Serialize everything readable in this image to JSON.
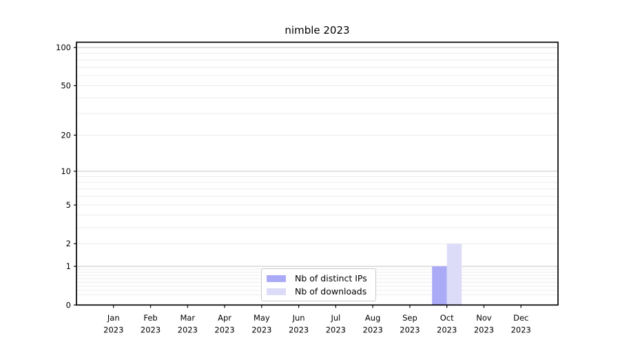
{
  "chart_data": {
    "type": "bar",
    "title": "nimble 2023",
    "categories": [
      "Jan 2023",
      "Feb 2023",
      "Mar 2023",
      "Apr 2023",
      "May 2023",
      "Jun 2023",
      "Jul 2023",
      "Aug 2023",
      "Sep 2023",
      "Oct 2023",
      "Nov 2023",
      "Dec 2023"
    ],
    "series": [
      {
        "name": "Nb of distinct IPs",
        "color": "#aaaaf7",
        "values": [
          0,
          0,
          0,
          0,
          0,
          0,
          0,
          0,
          0,
          1,
          0,
          0
        ]
      },
      {
        "name": "Nb of downloads",
        "color": "#dcdcf9",
        "values": [
          0,
          0,
          0,
          0,
          0,
          0,
          0,
          0,
          0,
          2,
          0,
          0
        ]
      }
    ],
    "xlabel": "",
    "ylabel": "",
    "yscale": "log1p",
    "y_ticks": [
      0,
      1,
      2,
      5,
      10,
      20,
      50,
      100
    ],
    "ylim": [
      0,
      110
    ],
    "grid": "both",
    "legend_position": "lower center"
  }
}
